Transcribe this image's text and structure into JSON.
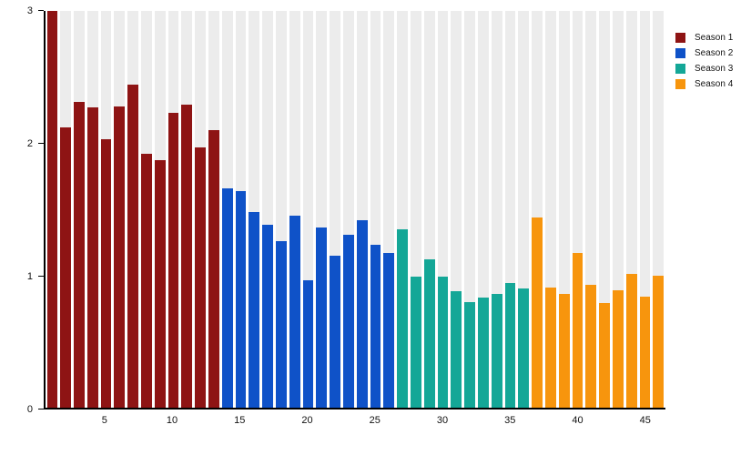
{
  "chart_data": {
    "type": "bar",
    "title": "",
    "xlabel": "",
    "ylabel": "",
    "ylim": [
      0,
      3
    ],
    "yticks": [
      0,
      1,
      2,
      3
    ],
    "xticks": [
      5,
      10,
      15,
      20,
      25,
      30,
      35,
      40,
      45
    ],
    "x_range": [
      1,
      46
    ],
    "grid": false,
    "background_stripe_color": "#ececec",
    "legend_position": "top-right-outside",
    "seasons": [
      {
        "name": "Season 1",
        "color": "#8e1414",
        "episodes": [
          1,
          13
        ],
        "values": [
          3.0,
          2.12,
          2.31,
          2.27,
          2.03,
          2.28,
          2.44,
          1.92,
          1.87,
          2.23,
          2.29,
          1.97,
          2.1
        ]
      },
      {
        "name": "Season 2",
        "color": "#0f52c8",
        "episodes": [
          14,
          26
        ],
        "values": [
          1.66,
          1.64,
          1.48,
          1.38,
          1.26,
          1.45,
          0.96,
          1.36,
          1.15,
          1.31,
          1.42,
          1.23,
          1.17
        ]
      },
      {
        "name": "Season 3",
        "color": "#14a797",
        "episodes": [
          27,
          36
        ],
        "values": [
          1.35,
          0.99,
          1.12,
          0.99,
          0.88,
          0.8,
          0.83,
          0.86,
          0.94,
          0.9
        ]
      },
      {
        "name": "Season 4",
        "color": "#f7950d",
        "episodes": [
          37,
          46
        ],
        "values": [
          1.44,
          0.91,
          0.86,
          1.17,
          0.93,
          0.79,
          0.89,
          1.01,
          0.84,
          1.0
        ]
      }
    ]
  },
  "legend": {
    "items": [
      {
        "label": "Season 1",
        "color": "#8e1414"
      },
      {
        "label": "Season 2",
        "color": "#0f52c8"
      },
      {
        "label": "Season 3",
        "color": "#14a797"
      },
      {
        "label": "Season 4",
        "color": "#f7950d"
      }
    ]
  }
}
